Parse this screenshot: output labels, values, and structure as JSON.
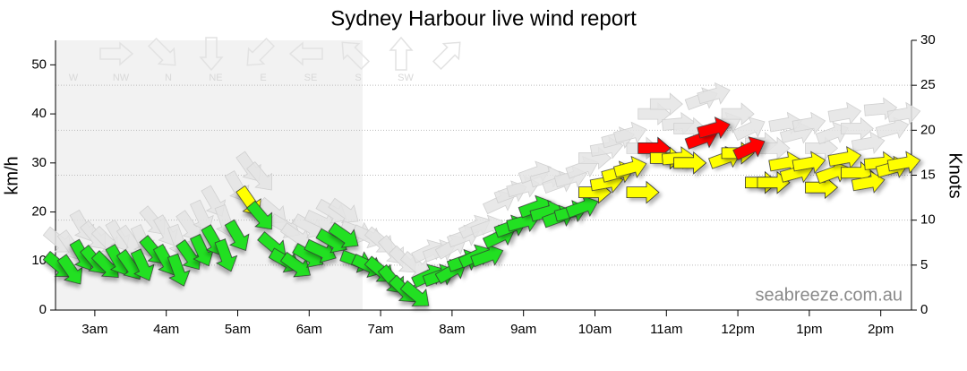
{
  "chart_data": {
    "type": "wind-arrows",
    "title": "Sydney Harbour live wind report",
    "y_label": "km/h",
    "y2_label": "Knots",
    "watermark": "seabreeze.com.au",
    "compass": [
      "W",
      "NW",
      "N",
      "NE",
      "E",
      "SE",
      "S",
      "SW"
    ],
    "xlim": [
      2.45,
      14.43
    ],
    "xticks": [
      {
        "value": 3,
        "label": "3am"
      },
      {
        "value": 4,
        "label": "4am"
      },
      {
        "value": 5,
        "label": "5am"
      },
      {
        "value": 6,
        "label": "6am"
      },
      {
        "value": 7,
        "label": "7am"
      },
      {
        "value": 8,
        "label": "8am"
      },
      {
        "value": 9,
        "label": "9am"
      },
      {
        "value": 10,
        "label": "10am"
      },
      {
        "value": 11,
        "label": "11am"
      },
      {
        "value": 12,
        "label": "12pm"
      },
      {
        "value": 13,
        "label": "1pm"
      },
      {
        "value": 14,
        "label": "2pm"
      }
    ],
    "ylim": [
      0,
      55
    ],
    "yticks": [
      0,
      10,
      20,
      30,
      40,
      50
    ],
    "y2lim": [
      0,
      30
    ],
    "y2ticks": [
      0,
      5,
      10,
      15,
      20,
      25,
      30
    ],
    "grid": true,
    "x": [
      2.5,
      2.67,
      2.83,
      3,
      3.17,
      3.33,
      3.5,
      3.67,
      3.83,
      4,
      4.17,
      4.33,
      4.5,
      4.67,
      4.83,
      5,
      5.17,
      5.33,
      5.5,
      5.67,
      5.83,
      6,
      6.17,
      6.33,
      6.5,
      6.67,
      6.83,
      7,
      7.17,
      7.33,
      7.5,
      7.67,
      7.83,
      8,
      8.17,
      8.33,
      8.5,
      8.67,
      8.83,
      9,
      9.17,
      9.33,
      9.5,
      9.67,
      9.83,
      10,
      10.17,
      10.33,
      10.5,
      10.67,
      10.83,
      11,
      11.17,
      11.33,
      11.5,
      11.67,
      11.83,
      12,
      12.17,
      12.33,
      12.5,
      12.67,
      12.83,
      13,
      13.17,
      13.33,
      13.5,
      13.67,
      13.83,
      14,
      14.17,
      14.33
    ],
    "angles": [
      40,
      55,
      60,
      50,
      45,
      60,
      55,
      65,
      50,
      60,
      70,
      55,
      65,
      60,
      70,
      60,
      55,
      50,
      40,
      30,
      35,
      30,
      25,
      30,
      35,
      20,
      25,
      40,
      50,
      45,
      40,
      -25,
      -20,
      -30,
      -20,
      -25,
      -20,
      -25,
      -20,
      -15,
      -20,
      -15,
      -20,
      -15,
      -20,
      0,
      -10,
      -15,
      -15,
      0,
      0,
      0,
      -5,
      0,
      -20,
      -15,
      -20,
      0,
      -25,
      0,
      0,
      -10,
      -15,
      -10,
      0,
      -20,
      -10,
      0,
      -10,
      -5,
      -15,
      -10
    ],
    "series": [
      {
        "name": "gust",
        "color": "#e4e4e4",
        "values": [
          14,
          13,
          17,
          15,
          14,
          15,
          14,
          14,
          18,
          16,
          14,
          17,
          19,
          22,
          18,
          25,
          29,
          27,
          20,
          17,
          15,
          17,
          18,
          20,
          20,
          16,
          15,
          14,
          12,
          10,
          9,
          12,
          12,
          13,
          15,
          17,
          17,
          22,
          24,
          25,
          28,
          27,
          26,
          27,
          29,
          31,
          33,
          35,
          36,
          33,
          40,
          42,
          38,
          37,
          43,
          44,
          38,
          40,
          37,
          34,
          33,
          38,
          36,
          38,
          33,
          36,
          40,
          37,
          34,
          41,
          37,
          40
        ]
      },
      {
        "name": "wind",
        "values": [
          9,
          8,
          11,
          10,
          9,
          10,
          9,
          9,
          12,
          10,
          8,
          11,
          12,
          14,
          11,
          15,
          22,
          19,
          13,
          10,
          9,
          11,
          12,
          14,
          15,
          10,
          9,
          8,
          6,
          4,
          3,
          7,
          7,
          8,
          10,
          11,
          11,
          15,
          17,
          18,
          21,
          20,
          19,
          20,
          21,
          24,
          26,
          28,
          29,
          24,
          33,
          31,
          31,
          30,
          35,
          37,
          31,
          32,
          33,
          26,
          26,
          30,
          28,
          30,
          25,
          28,
          31,
          28,
          26,
          30,
          29,
          30
        ],
        "colors": [
          "#22e022",
          "#22e022",
          "#22e022",
          "#22e022",
          "#22e022",
          "#22e022",
          "#22e022",
          "#22e022",
          "#22e022",
          "#22e022",
          "#22e022",
          "#22e022",
          "#22e022",
          "#22e022",
          "#22e022",
          "#22e022",
          "#ffff00",
          "#22e022",
          "#22e022",
          "#22e022",
          "#22e022",
          "#22e022",
          "#22e022",
          "#22e022",
          "#22e022",
          "#22e022",
          "#22e022",
          "#22e022",
          "#22e022",
          "#22e022",
          "#22e022",
          "#22e022",
          "#22e022",
          "#22e022",
          "#22e022",
          "#22e022",
          "#22e022",
          "#22e022",
          "#22e022",
          "#22e022",
          "#22e022",
          "#22e022",
          "#22e022",
          "#22e022",
          "#22e022",
          "#ffff00",
          "#ffff00",
          "#ffff00",
          "#ffff00",
          "#ffff00",
          "#ff0000",
          "#ffff00",
          "#ffff00",
          "#ffff00",
          "#ff0000",
          "#ff0000",
          "#ffff00",
          "#ffff00",
          "#ff0000",
          "#ffff00",
          "#ffff00",
          "#ffff00",
          "#ffff00",
          "#ffff00",
          "#ffff00",
          "#ffff00",
          "#ffff00",
          "#ffff00",
          "#ffff00",
          "#ffff00",
          "#ffff00",
          "#ffff00"
        ]
      }
    ]
  }
}
